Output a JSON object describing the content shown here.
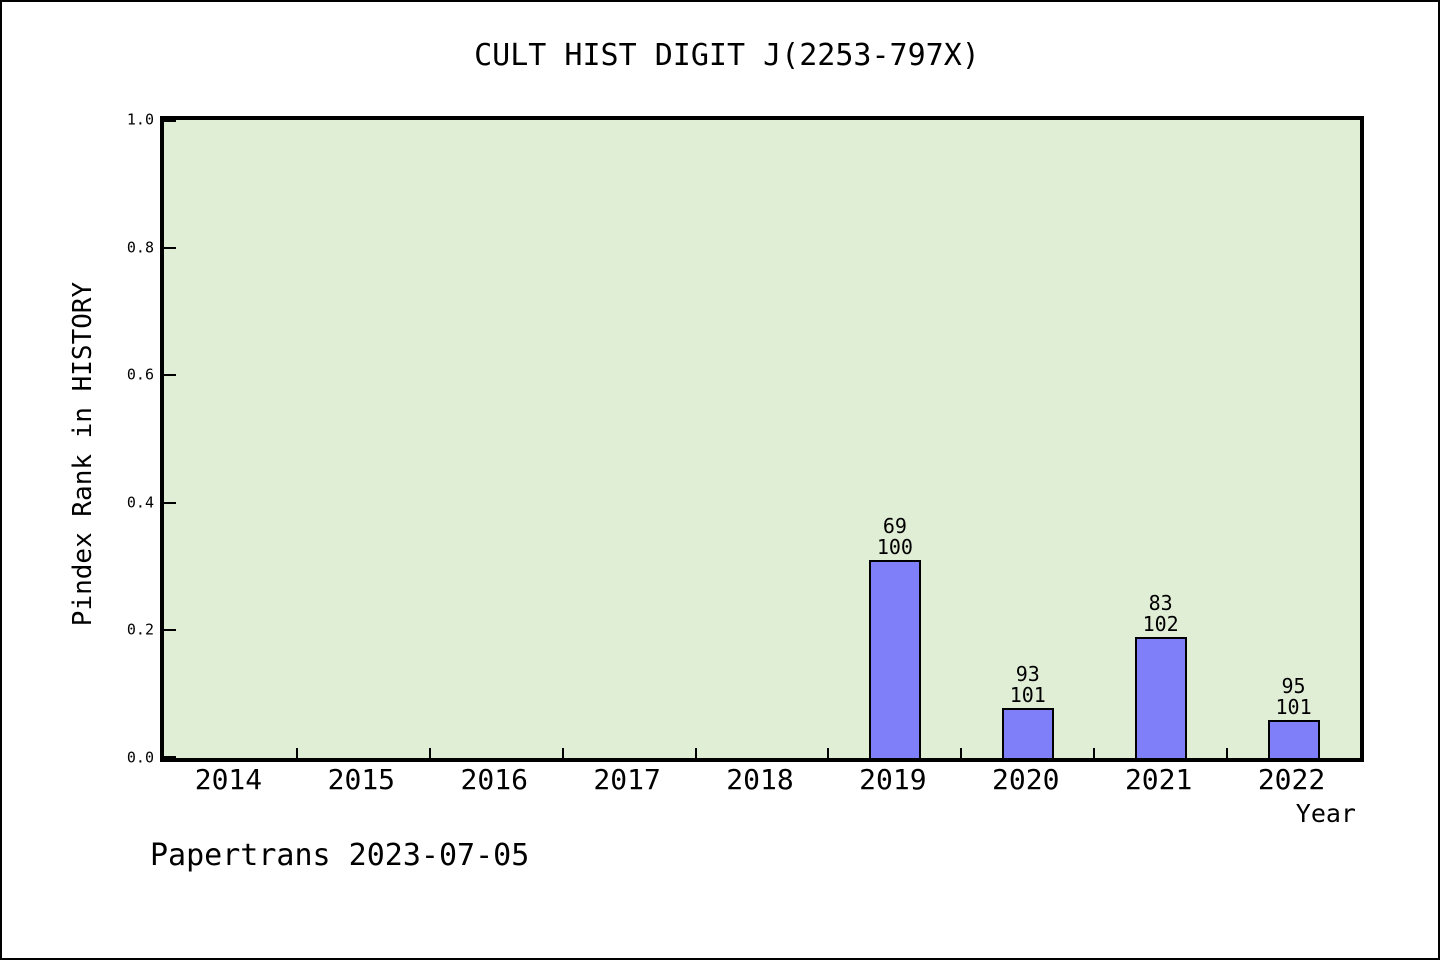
{
  "figure": {
    "background_color": "#ffffff",
    "outer_border_color": "#000000"
  },
  "footer": {
    "text": "Papertrans 2023-07-05"
  },
  "chart_data": {
    "type": "bar",
    "title": "CULT HIST DIGIT J(2253-797X)",
    "xlabel": "Year",
    "ylabel": "Pindex Rank in HISTORY",
    "categories": [
      "2014",
      "2015",
      "2016",
      "2017",
      "2018",
      "2019",
      "2020",
      "2021",
      "2022"
    ],
    "ylim": [
      0.0,
      1.0
    ],
    "y_ticks": [
      0.0,
      0.2,
      0.4,
      0.6,
      0.8,
      1.0
    ],
    "y_tick_labels": [
      "0.0",
      "0.2",
      "0.4",
      "0.6",
      "0.8",
      "1.0"
    ],
    "x_ticks_at_category_boundaries": true,
    "grid": false,
    "legend_position": "none",
    "plot_background_color": "#e1eed6",
    "bar_fill_color": "#7f7ffa",
    "bar_edge_color": "#000000",
    "series": [
      {
        "name": "Pindex Rank in HISTORY",
        "points": [
          {
            "category": "2019",
            "value": 0.31,
            "annotation_line1": "69",
            "annotation_line2": "100"
          },
          {
            "category": "2020",
            "value": 0.079,
            "annotation_line1": "93",
            "annotation_line2": "101"
          },
          {
            "category": "2021",
            "value": 0.19,
            "annotation_line1": "83",
            "annotation_line2": "102"
          },
          {
            "category": "2022",
            "value": 0.059,
            "annotation_line1": "95",
            "annotation_line2": "101"
          }
        ]
      }
    ]
  }
}
